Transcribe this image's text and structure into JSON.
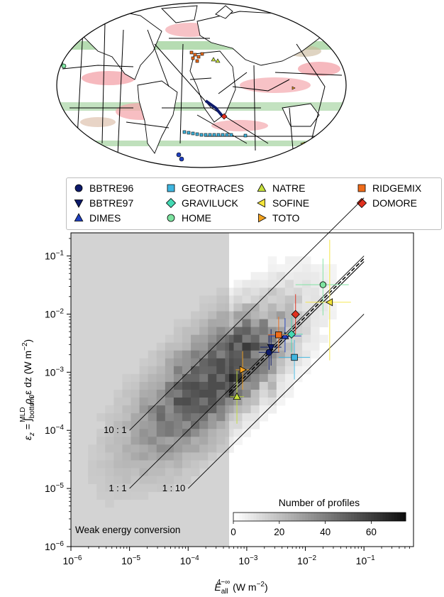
{
  "legend": [
    {
      "name": "BBTRE96",
      "marker": "circle",
      "color": "#0d1a6b"
    },
    {
      "name": "BBTRE97",
      "marker": "triangle-down",
      "color": "#0d1a6b"
    },
    {
      "name": "DIMES",
      "marker": "triangle-up",
      "color": "#1f3fbf"
    },
    {
      "name": "GEOTRACES",
      "marker": "square",
      "color": "#3fb6e0"
    },
    {
      "name": "GRAVILUCK",
      "marker": "diamond",
      "color": "#44d9b3"
    },
    {
      "name": "HOME",
      "marker": "circle",
      "color": "#7de3a0"
    },
    {
      "name": "NATRE",
      "marker": "triangle-up",
      "color": "#c6e03c"
    },
    {
      "name": "SOFINE",
      "marker": "triangle-left",
      "color": "#f3e43a"
    },
    {
      "name": "TOTO",
      "marker": "triangle-right",
      "color": "#f3a21f"
    },
    {
      "name": "RIDGEMIX",
      "marker": "square",
      "color": "#ef6c1a"
    },
    {
      "name": "DOMORE",
      "marker": "diamond",
      "color": "#e0301e"
    }
  ],
  "chart_data": {
    "type": "scatter",
    "x_scale": "log",
    "y_scale": "log",
    "xlim": [
      1e-06,
      0.7
    ],
    "ylim": [
      1e-06,
      0.25
    ],
    "xticks": [
      {
        "value": 1e-06,
        "base": "10",
        "exp": "−6"
      },
      {
        "value": 1e-05,
        "base": "10",
        "exp": "−5"
      },
      {
        "value": 0.0001,
        "base": "10",
        "exp": "−4"
      },
      {
        "value": 0.001,
        "base": "10",
        "exp": "−3"
      },
      {
        "value": 0.01,
        "base": "10",
        "exp": "−2"
      },
      {
        "value": 0.1,
        "base": "10",
        "exp": "−1"
      }
    ],
    "yticks": [
      {
        "value": 1e-06,
        "base": "10",
        "exp": "−6"
      },
      {
        "value": 1e-05,
        "base": "10",
        "exp": "−5"
      },
      {
        "value": 0.0001,
        "base": "10",
        "exp": "−4"
      },
      {
        "value": 0.001,
        "base": "10",
        "exp": "−3"
      },
      {
        "value": 0.01,
        "base": "10",
        "exp": "−2"
      },
      {
        "value": 0.1,
        "base": "10",
        "exp": "−1"
      }
    ],
    "xlabel": {
      "main": "E",
      "sub": "all",
      "sup": "4−∞",
      "units": " (W m",
      "units_sup": "−2",
      "close": ")"
    },
    "ylabel": {
      "lhs": "ε",
      "lhs_sub": "z",
      "eq": " = ∫",
      "int_sub": "bottom",
      "int_sup": "MLD",
      "rho": " ρ",
      "rho_sub": "0",
      "eps": "ε dz (W m",
      "units_sup": "−2",
      "close": ")"
    },
    "weak_region": {
      "x_max": 0.0005,
      "label": "Weak energy conversion"
    },
    "ratio_lines": [
      {
        "label": "10 : 1",
        "factor": 10,
        "x_start": 1e-05,
        "x_end": 0.1
      },
      {
        "label": "1 : 1",
        "factor": 1,
        "x_start": 1e-05,
        "x_end": 0.1
      },
      {
        "label": "1 : 10",
        "factor": 0.1,
        "x_start": 0.0001,
        "x_end": 0.1
      }
    ],
    "fit_line": {
      "x": [
        0.0005,
        0.1
      ],
      "y": [
        0.00045,
        0.09
      ],
      "style": "dashed"
    },
    "fit_line_solid": {
      "x": [
        0.0005,
        0.1
      ],
      "y": [
        0.0004,
        0.08
      ]
    },
    "colorbar": {
      "label": "Number of profiles",
      "min": 0,
      "max": 75,
      "ticks": [
        0,
        20,
        40,
        60
      ]
    },
    "series": [
      {
        "name": "BBTRE96",
        "x": 0.0024,
        "y": 0.0022,
        "xerr": [
          0.0016,
          0.0036
        ],
        "yerr": [
          0.0011,
          0.0045
        ],
        "marker": "circle",
        "color": "#0d1a6b"
      },
      {
        "name": "BBTRE97",
        "x": 0.0026,
        "y": 0.0027,
        "xerr": [
          0.0017,
          0.0039
        ],
        "yerr": [
          0.0013,
          0.0055
        ],
        "marker": "triangle-down",
        "color": "#0d1a6b"
      },
      {
        "name": "DIMES",
        "x": 0.0045,
        "y": 0.0042,
        "xerr": [
          0.0025,
          0.0085
        ],
        "yerr": [
          0.0022,
          0.0085
        ],
        "marker": "triangle-up",
        "color": "#1f3fbf"
      },
      {
        "name": "GEOTRACES",
        "x": 0.0065,
        "y": 0.0018,
        "xerr": [
          0.0035,
          0.012
        ],
        "yerr": [
          0.00075,
          0.0036
        ],
        "marker": "square",
        "color": "#3fb6e0"
      },
      {
        "name": "GRAVILUCK",
        "x": 0.0058,
        "y": 0.0045,
        "xerr": [
          0.0042,
          0.009
        ],
        "yerr": [
          0.0022,
          0.009
        ],
        "marker": "diamond",
        "color": "#44d9b3"
      },
      {
        "name": "HOME",
        "x": 0.02,
        "y": 0.032,
        "xerr": [
          0.0068,
          0.055
        ],
        "yerr": [
          0.0095,
          0.09
        ],
        "marker": "circle",
        "color": "#7de3a0"
      },
      {
        "name": "NATRE",
        "x": 0.00068,
        "y": 0.00038,
        "xerr": [
          0.00052,
          0.0009
        ],
        "yerr": [
          0.00013,
          0.00105
        ],
        "marker": "triangle-up",
        "color": "#c6e03c"
      },
      {
        "name": "SOFINE",
        "x": 0.026,
        "y": 0.016,
        "xerr": [
          0.01,
          0.06
        ],
        "yerr": [
          0.0016,
          0.19
        ],
        "marker": "triangle-left",
        "color": "#f3e43a"
      },
      {
        "name": "TOTO",
        "x": 0.00085,
        "y": 0.0011,
        "xerr": [
          0.00065,
          0.0011
        ],
        "yerr": [
          0.0005,
          0.0023
        ],
        "marker": "triangle-right",
        "color": "#f3a21f"
      },
      {
        "name": "RIDGEMIX",
        "x": 0.0035,
        "y": 0.0044,
        "xerr": [
          0.0023,
          0.005
        ],
        "yerr": [
          0.0022,
          0.009
        ],
        "marker": "square",
        "color": "#ef6c1a"
      },
      {
        "name": "DOMORE",
        "x": 0.0068,
        "y": 0.0099,
        "xerr": [
          0.0058,
          0.008
        ],
        "yerr": [
          0.0045,
          0.022
        ],
        "marker": "diamond",
        "color": "#e0301e"
      }
    ]
  }
}
